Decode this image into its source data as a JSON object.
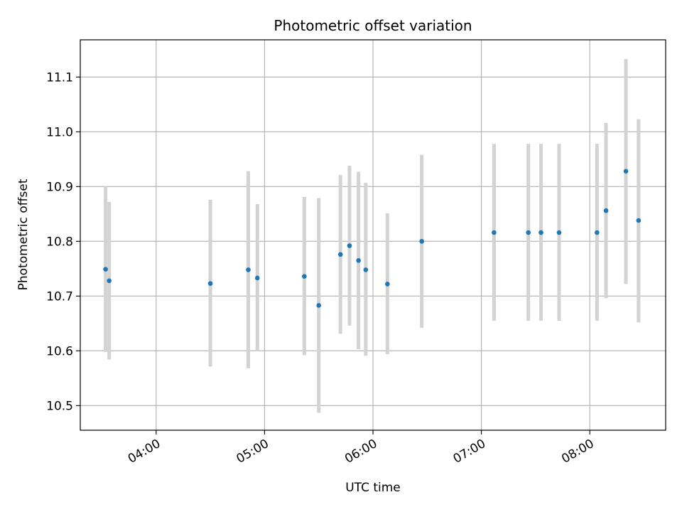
{
  "chart_data": {
    "type": "scatter",
    "title": "Photometric offset variation",
    "xlabel": "UTC time",
    "ylabel": "Photometric offset",
    "xlim": [
      "03:18",
      "08:42"
    ],
    "ylim": [
      10.455,
      11.168
    ],
    "x_ticks": [
      "04:00",
      "05:00",
      "06:00",
      "07:00",
      "08:00"
    ],
    "y_ticks": [
      "10.5",
      "10.6",
      "10.7",
      "10.8",
      "10.9",
      "11.0",
      "11.1"
    ],
    "grid": true,
    "marker_color": "#1f77b4",
    "errorbar_color": "#d3d3d3",
    "points": [
      {
        "x": "03:32",
        "y": 10.749,
        "low": 10.598,
        "high": 10.9
      },
      {
        "x": "03:34",
        "y": 10.728,
        "low": 10.584,
        "high": 10.872
      },
      {
        "x": "04:30",
        "y": 10.723,
        "low": 10.571,
        "high": 10.876
      },
      {
        "x": "04:51",
        "y": 10.748,
        "low": 10.568,
        "high": 10.928
      },
      {
        "x": "04:56",
        "y": 10.733,
        "low": 10.6,
        "high": 10.868
      },
      {
        "x": "05:22",
        "y": 10.736,
        "low": 10.592,
        "high": 10.881
      },
      {
        "x": "05:30",
        "y": 10.683,
        "low": 10.487,
        "high": 10.879
      },
      {
        "x": "05:42",
        "y": 10.776,
        "low": 10.631,
        "high": 10.921
      },
      {
        "x": "05:47",
        "y": 10.792,
        "low": 10.646,
        "high": 10.938
      },
      {
        "x": "05:52",
        "y": 10.765,
        "low": 10.603,
        "high": 10.927
      },
      {
        "x": "05:56",
        "y": 10.748,
        "low": 10.591,
        "high": 10.907
      },
      {
        "x": "06:08",
        "y": 10.722,
        "low": 10.594,
        "high": 10.851
      },
      {
        "x": "06:27",
        "y": 10.8,
        "low": 10.642,
        "high": 10.958
      },
      {
        "x": "07:07",
        "y": 10.816,
        "low": 10.655,
        "high": 10.978
      },
      {
        "x": "07:26",
        "y": 10.816,
        "low": 10.655,
        "high": 10.978
      },
      {
        "x": "07:33",
        "y": 10.816,
        "low": 10.655,
        "high": 10.978
      },
      {
        "x": "07:43",
        "y": 10.816,
        "low": 10.655,
        "high": 10.978
      },
      {
        "x": "08:04",
        "y": 10.816,
        "low": 10.655,
        "high": 10.978
      },
      {
        "x": "08:09",
        "y": 10.856,
        "low": 10.696,
        "high": 11.016
      },
      {
        "x": "08:20",
        "y": 10.928,
        "low": 10.722,
        "high": 11.133
      },
      {
        "x": "08:27",
        "y": 10.838,
        "low": 10.652,
        "high": 11.023
      }
    ]
  }
}
